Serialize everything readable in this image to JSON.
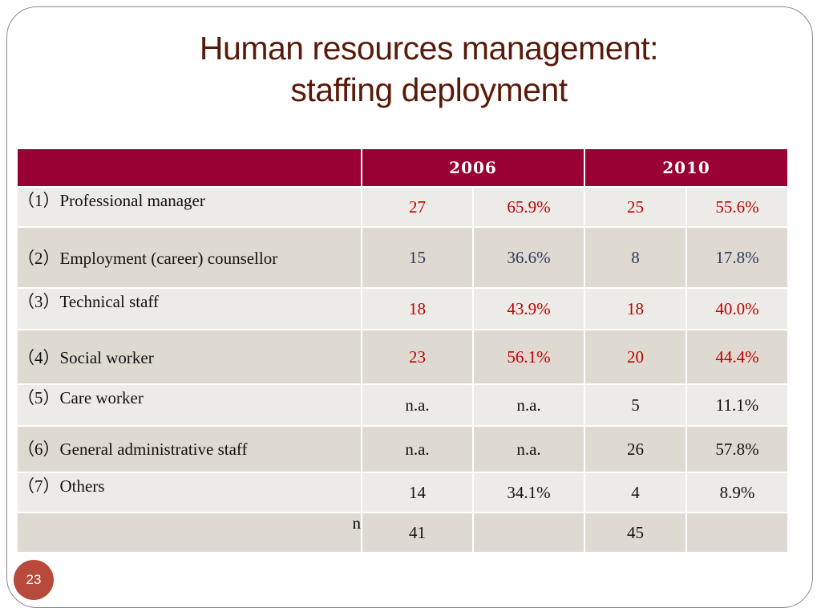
{
  "title_line1": "Human resources management:",
  "title_line2": "staffing deployment",
  "header": {
    "blank": "",
    "y1": "2006",
    "y2": "2010"
  },
  "rows": [
    {
      "label": "（1）Professional manager",
      "n06": "27",
      "p06": "65.9%",
      "n10": "25",
      "p10": "55.6%"
    },
    {
      "label": "（2）Employment (career) counsellor",
      "n06": "15",
      "p06": "36.6%",
      "n10": "8",
      "p10": "17.8%"
    },
    {
      "label": "（3）Technical staff",
      "n06": "18",
      "p06": "43.9%",
      "n10": "18",
      "p10": "40.0%"
    },
    {
      "label": "（4）Social worker",
      "n06": "23",
      "p06": "56.1%",
      "n10": "20",
      "p10": "44.4%"
    },
    {
      "label": "（5）Care worker",
      "n06": "n.a.",
      "p06": "n.a.",
      "n10": "5",
      "p10": "11.1%"
    },
    {
      "label": "（6）General administrative staff",
      "n06": "n.a.",
      "p06": "n.a.",
      "n10": "26",
      "p10": "57.8%"
    },
    {
      "label": "（7）Others",
      "n06": "14",
      "p06": "34.1%",
      "n10": "4",
      "p10": "8.9%"
    }
  ],
  "total": {
    "label": "n",
    "n06": "41",
    "n10": "45"
  },
  "page_number": "23",
  "colors": {
    "header_bg": "#990033",
    "title": "#5a1a0a",
    "highlight_text": "#c00000",
    "badge": "#b74a3a"
  }
}
